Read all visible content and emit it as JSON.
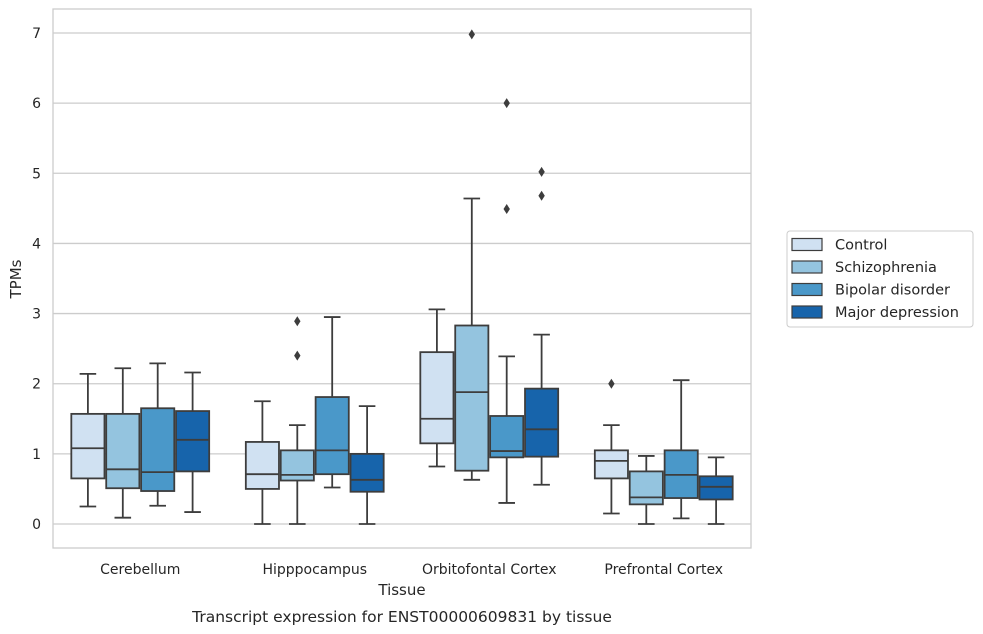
{
  "caption": "Transcript expression for ENST00000609831 by tissue",
  "chart_data": {
    "type": "box",
    "xlabel": "Tissue",
    "ylabel": "TPMs",
    "ylim": [
      -0.33,
      7.35
    ],
    "yticks": [
      0,
      1,
      2,
      3,
      4,
      5,
      6,
      7
    ],
    "grid": "horizontal",
    "legend_position": "right",
    "categories": [
      "Cerebellum",
      "Hipppocampus",
      "Orbitofontal Cortex",
      "Prefrontal Cortex"
    ],
    "series": [
      {
        "name": "Control",
        "color": "#d0e1f2",
        "boxes": [
          {
            "whisker_low": 0.25,
            "q1": 0.65,
            "median": 1.08,
            "q3": 1.57,
            "whisker_high": 2.14,
            "outliers": []
          },
          {
            "whisker_low": 0.0,
            "q1": 0.5,
            "median": 0.71,
            "q3": 1.17,
            "whisker_high": 1.75,
            "outliers": []
          },
          {
            "whisker_low": 0.82,
            "q1": 1.15,
            "median": 1.5,
            "q3": 2.45,
            "whisker_high": 3.06,
            "outliers": []
          },
          {
            "whisker_low": 0.15,
            "q1": 0.65,
            "median": 0.9,
            "q3": 1.05,
            "whisker_high": 1.41,
            "outliers": [
              2.0
            ]
          }
        ]
      },
      {
        "name": "Schizophrenia",
        "color": "#94c4df",
        "boxes": [
          {
            "whisker_low": 0.09,
            "q1": 0.51,
            "median": 0.78,
            "q3": 1.57,
            "whisker_high": 2.22,
            "outliers": []
          },
          {
            "whisker_low": 0.0,
            "q1": 0.62,
            "median": 0.7,
            "q3": 1.05,
            "whisker_high": 1.41,
            "outliers": [
              2.4,
              2.89
            ]
          },
          {
            "whisker_low": 0.63,
            "q1": 0.76,
            "median": 1.88,
            "q3": 2.83,
            "whisker_high": 4.64,
            "outliers": [
              6.98
            ]
          },
          {
            "whisker_low": 0.0,
            "q1": 0.28,
            "median": 0.38,
            "q3": 0.75,
            "whisker_high": 0.97,
            "outliers": []
          }
        ]
      },
      {
        "name": "Bipolar disorder",
        "color": "#4a98c9",
        "boxes": [
          {
            "whisker_low": 0.26,
            "q1": 0.47,
            "median": 0.74,
            "q3": 1.65,
            "whisker_high": 2.29,
            "outliers": []
          },
          {
            "whisker_low": 0.52,
            "q1": 0.71,
            "median": 1.05,
            "q3": 1.81,
            "whisker_high": 2.95,
            "outliers": []
          },
          {
            "whisker_low": 0.3,
            "q1": 0.95,
            "median": 1.04,
            "q3": 1.54,
            "whisker_high": 2.39,
            "outliers": [
              4.49,
              6.0
            ]
          },
          {
            "whisker_low": 0.08,
            "q1": 0.37,
            "median": 0.7,
            "q3": 1.05,
            "whisker_high": 2.05,
            "outliers": []
          }
        ]
      },
      {
        "name": "Major depression",
        "color": "#1764ab",
        "boxes": [
          {
            "whisker_low": 0.17,
            "q1": 0.75,
            "median": 1.2,
            "q3": 1.61,
            "whisker_high": 2.16,
            "outliers": []
          },
          {
            "whisker_low": 0.0,
            "q1": 0.46,
            "median": 0.63,
            "q3": 1.0,
            "whisker_high": 1.68,
            "outliers": []
          },
          {
            "whisker_low": 0.56,
            "q1": 0.96,
            "median": 1.35,
            "q3": 1.93,
            "whisker_high": 2.7,
            "outliers": [
              4.68,
              5.02
            ]
          },
          {
            "whisker_low": 0.0,
            "q1": 0.35,
            "median": 0.53,
            "q3": 0.68,
            "whisker_high": 0.95,
            "outliers": []
          }
        ]
      }
    ]
  }
}
